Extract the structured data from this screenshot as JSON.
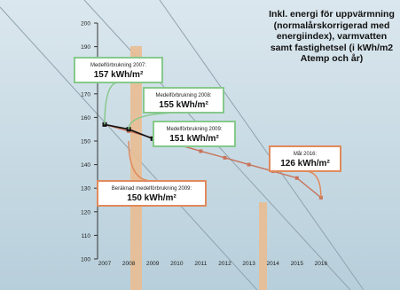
{
  "chart_data": {
    "type": "line",
    "note": "Inkl. energi för uppvärmning (normalårskorrigerad med energiindex), varmvatten samt fastighetsel (i kWh/m2 Atemp och år)",
    "x_ticks": [
      "2007",
      "2008",
      "2009",
      "2010",
      "2011",
      "2012",
      "2013",
      "2014",
      "2015",
      "2016"
    ],
    "y_ticks": [
      "100",
      "110",
      "120",
      "130",
      "140",
      "150",
      "160",
      "170",
      "180",
      "190",
      "200"
    ],
    "ylim": [
      100,
      200
    ],
    "grid": false,
    "colors": {
      "target": "#c8735a",
      "measured": "#111111",
      "box_green": "#86c98b",
      "box_orange": "#e08a5c",
      "pole": "#e9bc92"
    },
    "series": [
      {
        "key": "target",
        "x": [
          2007,
          2008,
          2009,
          2010,
          2011,
          2012,
          2013,
          2014,
          2015,
          2016
        ],
        "y": [
          157,
          154.2,
          151.3,
          148.6,
          145.7,
          142.9,
          140,
          137.2,
          134.3,
          126
        ]
      },
      {
        "key": "measured",
        "x": [
          2007,
          2008,
          2009
        ],
        "y": [
          157,
          155,
          151
        ]
      }
    ],
    "annotations": [
      {
        "id": "a2007",
        "heading": "Medelförbrukning 2007:",
        "value": "157 kWh/m²",
        "border": "green"
      },
      {
        "id": "a2008",
        "heading": "Medelförbrukning 2008:",
        "value": "155 kWh/m²",
        "border": "green"
      },
      {
        "id": "a2009",
        "heading": "Medelförbrukning 2009:",
        "value": "151 kWh/m²",
        "border": "green"
      },
      {
        "id": "beraknad",
        "heading": "Beräknad medelförbrukning 2009:",
        "value": "150 kWh/m²",
        "border": "orange"
      },
      {
        "id": "mal",
        "heading": "Mål 2016:",
        "value": "126 kWh/m²",
        "border": "orange"
      }
    ]
  }
}
